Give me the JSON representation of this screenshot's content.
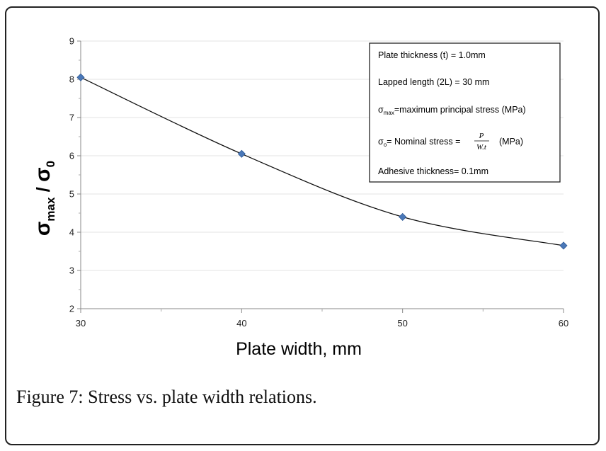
{
  "chart_data": {
    "type": "line",
    "x": [
      30,
      40,
      50,
      60
    ],
    "values": [
      8.05,
      6.05,
      4.4,
      3.65
    ],
    "xlim": [
      30,
      60
    ],
    "ylim": [
      2,
      9
    ],
    "xticks": [
      "30",
      "40",
      "50",
      "60"
    ],
    "yticks": [
      "2",
      "3",
      "4",
      "5",
      "6",
      "7",
      "8",
      "9"
    ],
    "xlabel": "Plate width, mm",
    "ylabel": {
      "sigma": "σ",
      "sub1": "max",
      "slash": " / ",
      "sigma2": "σ",
      "sub2": "0"
    },
    "grid": true,
    "line_color": "#111111",
    "marker_color": "#4a78b8",
    "marker": "diamond",
    "annotations": {
      "line1": "Plate thickness (t) = 1.0mm",
      "line2": "Lapped length (2L) = 30 mm",
      "line3": {
        "sigma": "σ",
        "sub": "max",
        "text": "=maximum principal stress (MPa)"
      },
      "line4": {
        "sigma": "σ",
        "sub": "o",
        "text": "= Nominal stress = ",
        "num": "P",
        "den": "W.t",
        "unit": "(MPa)"
      },
      "line5": "Adhesive thickness= 0.1mm"
    }
  },
  "caption": {
    "label": "Figure 7",
    "text": ": Stress vs. plate width relations."
  }
}
